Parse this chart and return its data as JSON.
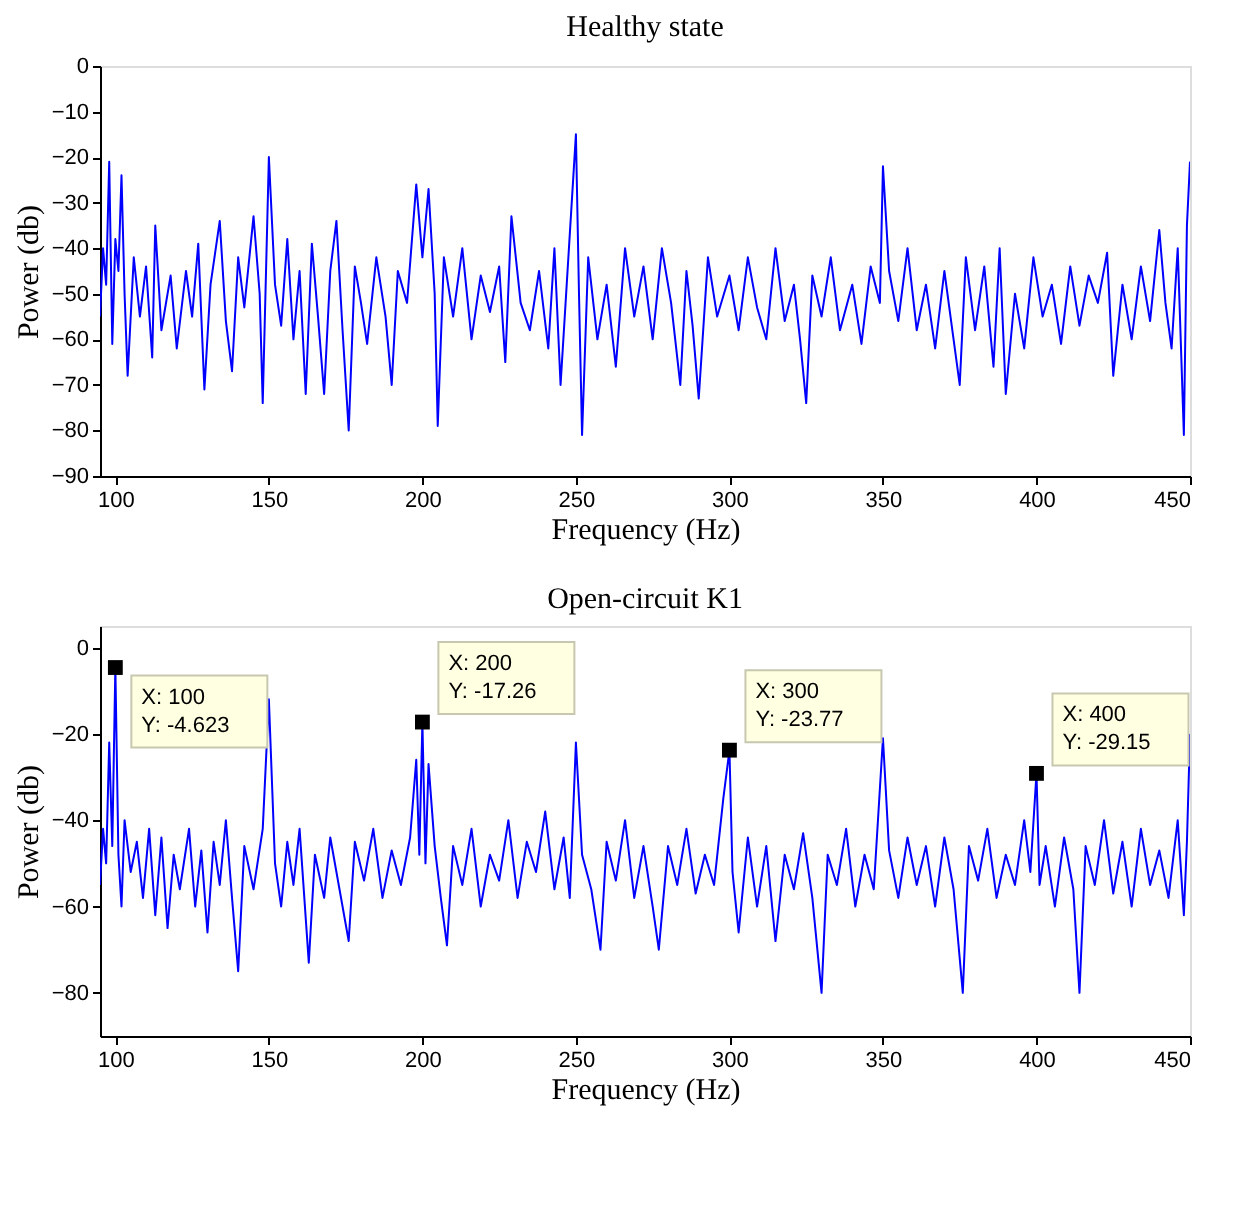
{
  "chart_data": [
    {
      "type": "line",
      "title": "Healthy state",
      "xlabel": "Frequency (Hz)",
      "ylabel": "Power (db)",
      "xlim": [
        95,
        450
      ],
      "ylim": [
        -90,
        0
      ],
      "xticks": [
        100,
        150,
        200,
        250,
        300,
        350,
        400,
        450
      ],
      "yticks": [
        0,
        -10,
        -20,
        -30,
        -40,
        -50,
        -60,
        -70,
        -80,
        -90
      ],
      "grid": false,
      "line_style": "solid",
      "marker": "none",
      "series": [
        {
          "color": "#0000ff",
          "x": [
            95,
            96,
            97,
            98,
            99,
            100,
            101,
            102,
            103,
            104,
            106,
            108,
            110,
            112,
            113,
            115,
            118,
            120,
            123,
            125,
            127,
            129,
            131,
            134,
            136,
            138,
            140,
            142,
            145,
            147,
            148,
            150,
            152,
            154,
            156,
            158,
            160,
            162,
            164,
            166,
            168,
            170,
            172,
            174,
            176,
            178,
            180,
            182,
            185,
            188,
            190,
            192,
            195,
            198,
            200,
            202,
            204,
            205,
            207,
            210,
            213,
            216,
            219,
            222,
            225,
            227,
            229,
            232,
            235,
            238,
            241,
            243,
            245,
            247,
            250,
            251,
            252,
            254,
            257,
            260,
            263,
            266,
            269,
            272,
            275,
            278,
            281,
            284,
            286,
            288,
            290,
            293,
            296,
            300,
            303,
            306,
            309,
            312,
            315,
            318,
            321,
            323,
            325,
            327,
            330,
            333,
            336,
            340,
            343,
            346,
            349,
            350,
            352,
            355,
            358,
            361,
            364,
            367,
            370,
            373,
            375,
            377,
            380,
            383,
            386,
            388,
            390,
            393,
            396,
            399,
            402,
            405,
            408,
            411,
            414,
            417,
            420,
            423,
            425,
            428,
            431,
            434,
            437,
            440,
            442,
            444,
            446,
            448,
            449,
            450
          ],
          "values": [
            -55,
            -40,
            -48,
            -21,
            -61,
            -38,
            -45,
            -24,
            -50,
            -68,
            -42,
            -55,
            -44,
            -64,
            -35,
            -58,
            -46,
            -62,
            -45,
            -55,
            -39,
            -71,
            -48,
            -34,
            -56,
            -67,
            -42,
            -53,
            -33,
            -50,
            -74,
            -20,
            -48,
            -57,
            -38,
            -60,
            -45,
            -72,
            -39,
            -55,
            -72,
            -45,
            -34,
            -58,
            -80,
            -44,
            -52,
            -61,
            -42,
            -55,
            -70,
            -45,
            -52,
            -26,
            -42,
            -27,
            -50,
            -79,
            -42,
            -55,
            -40,
            -60,
            -46,
            -54,
            -44,
            -65,
            -33,
            -52,
            -58,
            -45,
            -62,
            -40,
            -70,
            -48,
            -15,
            -50,
            -81,
            -42,
            -60,
            -48,
            -66,
            -40,
            -55,
            -44,
            -60,
            -40,
            -52,
            -70,
            -45,
            -57,
            -73,
            -42,
            -55,
            -46,
            -58,
            -42,
            -53,
            -60,
            -40,
            -56,
            -48,
            -60,
            -74,
            -46,
            -55,
            -42,
            -58,
            -48,
            -61,
            -44,
            -52,
            -22,
            -45,
            -56,
            -40,
            -58,
            -48,
            -62,
            -45,
            -60,
            -70,
            -42,
            -58,
            -44,
            -66,
            -40,
            -72,
            -50,
            -62,
            -42,
            -55,
            -48,
            -61,
            -44,
            -57,
            -46,
            -52,
            -41,
            -68,
            -48,
            -60,
            -44,
            -56,
            -36,
            -52,
            -62,
            -40,
            -81,
            -35,
            -21
          ]
        }
      ]
    },
    {
      "type": "line",
      "title": "Open-circuit K1",
      "xlabel": "Frequency (Hz)",
      "ylabel": "Power (db)",
      "xlim": [
        95,
        450
      ],
      "ylim": [
        -90,
        5
      ],
      "xticks": [
        100,
        150,
        200,
        250,
        300,
        350,
        400,
        450
      ],
      "yticks": [
        0,
        -20,
        -40,
        -60,
        -80
      ],
      "grid": false,
      "line_style": "solid",
      "marker": "none",
      "series": [
        {
          "color": "#0000ff",
          "x": [
            95,
            96,
            97,
            98,
            99,
            100,
            101,
            102,
            103,
            105,
            107,
            109,
            111,
            113,
            115,
            117,
            119,
            121,
            124,
            126,
            128,
            130,
            132,
            134,
            136,
            138,
            140,
            142,
            145,
            148,
            150,
            152,
            154,
            156,
            158,
            160,
            163,
            165,
            168,
            170,
            173,
            176,
            178,
            181,
            184,
            187,
            190,
            193,
            196,
            198,
            199,
            200,
            201,
            202,
            204,
            206,
            208,
            210,
            213,
            216,
            219,
            222,
            225,
            228,
            231,
            234,
            237,
            240,
            243,
            246,
            248,
            250,
            252,
            255,
            258,
            260,
            263,
            266,
            269,
            272,
            275,
            277,
            280,
            283,
            286,
            289,
            292,
            295,
            298,
            300,
            301,
            303,
            306,
            309,
            312,
            315,
            318,
            321,
            324,
            327,
            330,
            332,
            335,
            338,
            341,
            344,
            347,
            350,
            352,
            355,
            358,
            361,
            364,
            367,
            370,
            373,
            376,
            378,
            381,
            384,
            387,
            390,
            393,
            396,
            398,
            400,
            401,
            403,
            406,
            409,
            412,
            414,
            416,
            419,
            422,
            425,
            428,
            431,
            434,
            437,
            440,
            443,
            446,
            448,
            449,
            450
          ],
          "values": [
            -55,
            -42,
            -50,
            -22,
            -46,
            -4.623,
            -48,
            -60,
            -40,
            -52,
            -45,
            -58,
            -42,
            -62,
            -44,
            -65,
            -48,
            -56,
            -42,
            -60,
            -47,
            -66,
            -45,
            -55,
            -40,
            -58,
            -75,
            -46,
            -56,
            -42,
            -12,
            -50,
            -60,
            -45,
            -55,
            -42,
            -73,
            -48,
            -58,
            -44,
            -56,
            -68,
            -45,
            -54,
            -42,
            -58,
            -47,
            -55,
            -44,
            -26,
            -48,
            -17.26,
            -50,
            -27,
            -46,
            -58,
            -69,
            -46,
            -55,
            -42,
            -60,
            -48,
            -54,
            -40,
            -58,
            -45,
            -52,
            -38,
            -56,
            -44,
            -58,
            -22,
            -48,
            -56,
            -70,
            -45,
            -54,
            -40,
            -58,
            -46,
            -60,
            -70,
            -46,
            -55,
            -42,
            -57,
            -48,
            -55,
            -35,
            -23.77,
            -52,
            -66,
            -44,
            -60,
            -46,
            -68,
            -48,
            -56,
            -43,
            -58,
            -80,
            -48,
            -55,
            -42,
            -60,
            -48,
            -56,
            -21,
            -47,
            -58,
            -44,
            -55,
            -46,
            -60,
            -44,
            -56,
            -80,
            -46,
            -54,
            -42,
            -58,
            -48,
            -55,
            -40,
            -52,
            -29.15,
            -55,
            -46,
            -60,
            -44,
            -56,
            -80,
            -46,
            -55,
            -40,
            -57,
            -45,
            -60,
            -42,
            -55,
            -47,
            -58,
            -40,
            -62,
            -45,
            -20
          ]
        }
      ],
      "annotations": [
        {
          "text": "X: 100\nY: -4.623",
          "x": 100,
          "y": -4.623
        },
        {
          "text": "X: 200\nY: -17.26",
          "x": 200,
          "y": -17.26
        },
        {
          "text": "X: 300\nY: -23.77",
          "x": 300,
          "y": -23.77
        },
        {
          "text": "X: 400\nY: -29.15",
          "x": 400,
          "y": -29.15
        }
      ]
    }
  ]
}
